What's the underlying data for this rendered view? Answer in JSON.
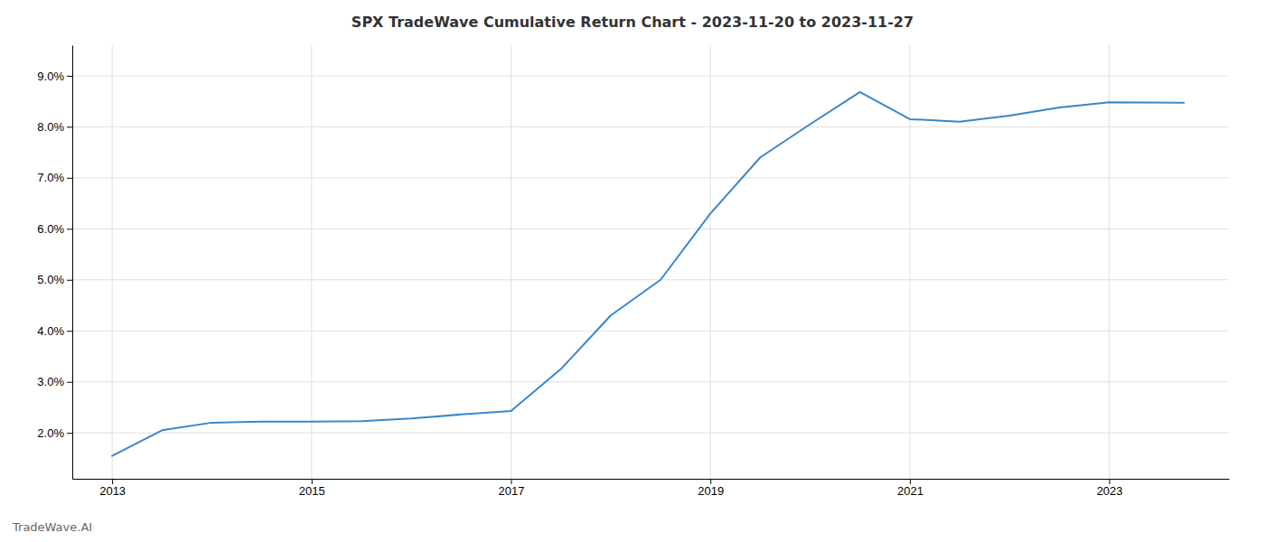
{
  "chart_data": {
    "type": "line",
    "title": "SPX TradeWave Cumulative Return Chart - 2023-11-20 to 2023-11-27",
    "annotations": [
      "TradeWave.AI"
    ],
    "x": [
      2013,
      2013.5,
      2014,
      2014.5,
      2015,
      2015.5,
      2016,
      2016.5,
      2017,
      2017.5,
      2018,
      2018.5,
      2019,
      2019.5,
      2020,
      2020.5,
      2021,
      2021.5,
      2022,
      2022.5,
      2023,
      2023.75
    ],
    "values": [
      1.55,
      2.05,
      2.2,
      2.22,
      2.22,
      2.23,
      2.28,
      2.36,
      2.43,
      3.25,
      4.3,
      5.0,
      6.3,
      7.4,
      8.05,
      8.68,
      8.15,
      8.1,
      8.22,
      8.38,
      8.48,
      8.47
    ],
    "color": "#3a87c8",
    "xlim": [
      2012.6,
      2024.2
    ],
    "ylim": [
      1.1,
      9.6
    ],
    "xticks": [
      2013,
      2015,
      2017,
      2019,
      2021,
      2023
    ],
    "yticks": [
      {
        "value": 2.0,
        "label": "2.0%"
      },
      {
        "value": 3.0,
        "label": "3.0%"
      },
      {
        "value": 4.0,
        "label": "4.0%"
      },
      {
        "value": 5.0,
        "label": "5.0%"
      },
      {
        "value": 6.0,
        "label": "6.0%"
      },
      {
        "value": 7.0,
        "label": "7.0%"
      },
      {
        "value": 8.0,
        "label": "8.0%"
      },
      {
        "value": 9.0,
        "label": "9.0%"
      }
    ],
    "grid": true
  }
}
